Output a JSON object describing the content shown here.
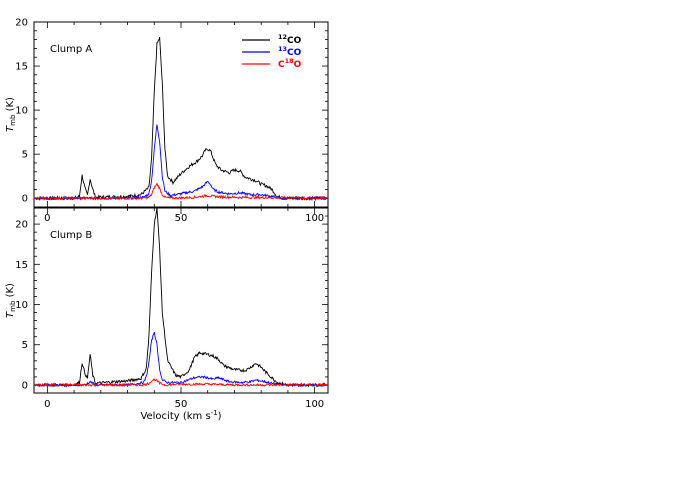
{
  "chart_data": [
    {
      "type": "line",
      "panel_label": "Clump A",
      "xlim": [
        -5,
        105
      ],
      "ylim": [
        -1,
        20
      ],
      "yticks": [
        0,
        5,
        10,
        15,
        20
      ],
      "xticks": [
        0,
        50,
        100
      ],
      "ylabel_main": "T",
      "ylabel_sub": "mb",
      "ylabel_unit": " (K)",
      "legend_position": "top-right",
      "series": [
        {
          "name_main": "CO",
          "name_sup": "12",
          "color": "#000000",
          "x": [
            -5,
            10,
            12,
            13,
            14,
            15,
            16,
            17,
            18,
            30,
            35,
            38,
            39,
            40,
            41,
            42,
            43,
            44,
            45,
            47,
            50,
            53,
            56,
            58,
            59,
            60,
            61,
            62,
            63,
            65,
            68,
            70,
            72,
            74,
            76,
            78,
            80,
            82,
            84,
            86,
            88,
            95,
            105
          ],
          "y": [
            0,
            0,
            0.2,
            2.6,
            1.2,
            0.3,
            2.2,
            1.0,
            0.1,
            0.2,
            0.4,
            1.2,
            4.5,
            12,
            17.5,
            18.2,
            13,
            5.5,
            2.5,
            1.8,
            2.8,
            3.6,
            4.2,
            4.8,
            5.4,
            5.6,
            5.4,
            4.6,
            3.8,
            3.2,
            2.9,
            3.2,
            3.1,
            2.4,
            2.2,
            2.0,
            1.6,
            1.4,
            1.0,
            0.2,
            0,
            0,
            0
          ]
        },
        {
          "name_main": "CO",
          "name_sup": "13",
          "color": "#0000ff",
          "x": [
            -5,
            30,
            36,
            38,
            39,
            40,
            41,
            42,
            43,
            44,
            46,
            50,
            55,
            58,
            60,
            61,
            62,
            64,
            68,
            72,
            76,
            80,
            84,
            88,
            105
          ],
          "y": [
            0,
            0,
            0.1,
            0.5,
            2.0,
            5.5,
            8.4,
            6.5,
            2.5,
            0.8,
            0.3,
            0.5,
            0.8,
            1.3,
            1.9,
            1.6,
            1.0,
            0.7,
            0.5,
            0.6,
            0.4,
            0.4,
            0.2,
            0,
            0
          ]
        },
        {
          "name_main": "O",
          "name_prefix": "C",
          "name_sup": "18",
          "color": "#ff0000",
          "x": [
            -5,
            36,
            38,
            39,
            40,
            41,
            42,
            43,
            44,
            46,
            55,
            60,
            62,
            70,
            105
          ],
          "y": [
            0,
            0,
            0.1,
            0.4,
            1.2,
            1.6,
            1.1,
            0.4,
            0.1,
            0,
            0.1,
            0.3,
            0.2,
            0.1,
            0
          ]
        }
      ]
    },
    {
      "type": "line",
      "panel_label": "Clump B",
      "xlim": [
        -5,
        105
      ],
      "ylim": [
        -1,
        22
      ],
      "yticks": [
        0,
        5,
        10,
        15,
        20
      ],
      "xticks": [
        0,
        50,
        100
      ],
      "ylabel_main": "T",
      "ylabel_sub": "mb",
      "ylabel_unit": " (K)",
      "xlabel_main": "Velocity  (km s",
      "xlabel_sup": "-1",
      "xlabel_end": ")",
      "series": [
        {
          "name": "",
          "color": "#000000",
          "x": [
            -5,
            10,
            12,
            13,
            14,
            15,
            16,
            17,
            18,
            25,
            30,
            35,
            37,
            38,
            39,
            40,
            41,
            42,
            43,
            45,
            48,
            50,
            53,
            55,
            57,
            60,
            62,
            64,
            66,
            70,
            74,
            76,
            78,
            80,
            82,
            84,
            86,
            90,
            105
          ],
          "y": [
            0,
            0,
            0.3,
            2.8,
            1.5,
            0.8,
            3.8,
            1.2,
            0.2,
            0.4,
            0.5,
            0.8,
            2.0,
            6.0,
            14,
            20,
            22,
            17,
            9,
            3,
            1.2,
            1.0,
            1.8,
            3.4,
            4.0,
            3.8,
            3.6,
            3.2,
            2.4,
            1.9,
            1.8,
            2.2,
            2.7,
            2.2,
            1.5,
            0.9,
            0.3,
            0,
            0
          ]
        },
        {
          "name": "",
          "color": "#0000ff",
          "x": [
            -5,
            14,
            16,
            18,
            30,
            36,
            37,
            38,
            39,
            40,
            41,
            42,
            43,
            45,
            50,
            55,
            58,
            60,
            62,
            64,
            68,
            72,
            76,
            78,
            80,
            84,
            88,
            105
          ],
          "y": [
            0,
            0,
            0.4,
            0,
            0,
            0.3,
            1.0,
            2.8,
            5.5,
            6.6,
            5.0,
            2.0,
            0.6,
            0.3,
            0.3,
            0.9,
            1.0,
            0.9,
            0.7,
            0.9,
            0.4,
            0.3,
            0.4,
            0.6,
            0.5,
            0.2,
            0,
            0
          ]
        },
        {
          "name": "",
          "color": "#ff0000",
          "x": [
            -5,
            36,
            38,
            39,
            40,
            41,
            42,
            44,
            50,
            60,
            70,
            105
          ],
          "y": [
            0,
            0,
            0.2,
            0.5,
            0.7,
            0.5,
            0.2,
            0,
            0.1,
            0.1,
            0,
            0
          ]
        }
      ]
    }
  ]
}
